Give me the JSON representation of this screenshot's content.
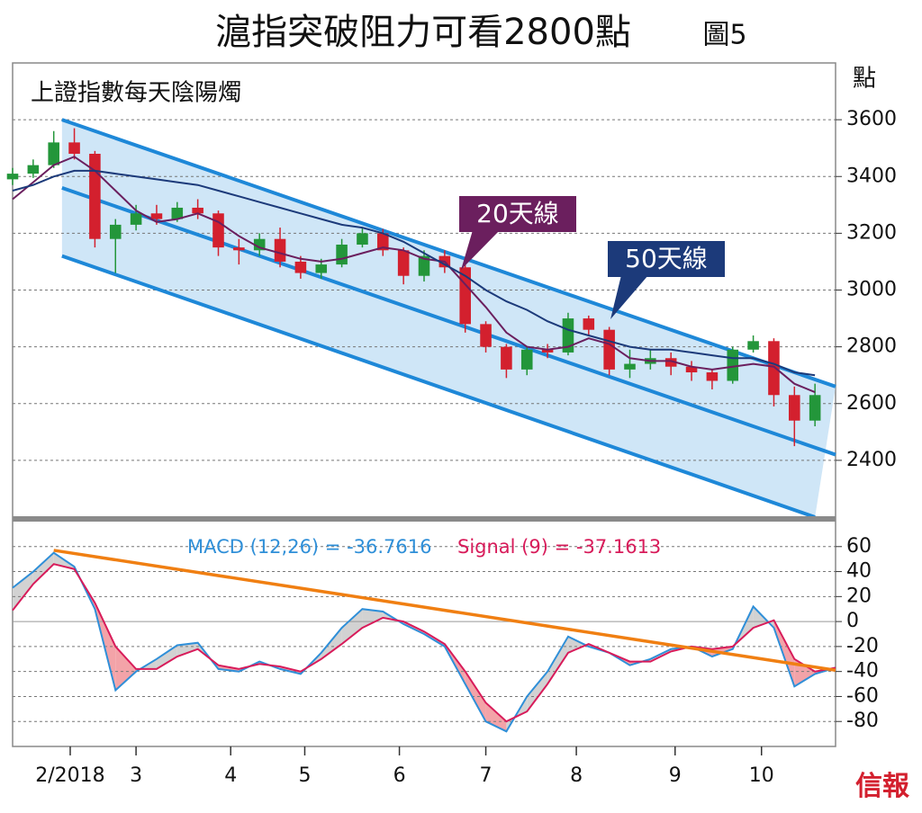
{
  "chart_data": [
    {
      "type": "candlestick",
      "title": "滬指突破阻力可看2800點",
      "figure_label": "圖5",
      "subtitle": "上證指數每天陰陽燭",
      "y_unit_label": "點",
      "x": [
        0,
        5,
        10,
        15,
        20,
        25,
        30,
        35,
        40,
        45,
        50,
        55,
        60,
        65,
        70,
        75,
        80,
        85,
        90,
        95,
        100,
        105,
        110,
        115,
        120,
        125,
        130,
        135,
        140,
        145,
        150,
        155,
        160,
        165,
        170,
        175,
        180,
        185,
        190,
        195
      ],
      "open": [
        3390,
        3410,
        3440,
        3520,
        3480,
        3180,
        3230,
        3270,
        3250,
        3290,
        3270,
        3150,
        3140,
        3180,
        3100,
        3060,
        3090,
        3160,
        3200,
        3140,
        3050,
        3120,
        3080,
        2880,
        2800,
        2720,
        2790,
        2780,
        2900,
        2860,
        2720,
        2740,
        2760,
        2730,
        2710,
        2680,
        2790,
        2820,
        2630,
        2540
      ],
      "high": [
        3430,
        3460,
        3560,
        3570,
        3490,
        3250,
        3300,
        3300,
        3310,
        3320,
        3280,
        3180,
        3200,
        3220,
        3120,
        3110,
        3180,
        3220,
        3215,
        3150,
        3140,
        3140,
        3090,
        2890,
        2810,
        2800,
        2810,
        2920,
        2910,
        2870,
        2790,
        2790,
        2780,
        2750,
        2720,
        2800,
        2840,
        2830,
        2660,
        2670
      ],
      "low": [
        3370,
        3395,
        3430,
        3460,
        3150,
        3060,
        3210,
        3230,
        3240,
        3250,
        3120,
        3090,
        3120,
        3080,
        3040,
        3040,
        3080,
        3150,
        3120,
        3020,
        3030,
        3060,
        2850,
        2780,
        2690,
        2700,
        2760,
        2770,
        2840,
        2700,
        2690,
        2720,
        2700,
        2680,
        2650,
        2670,
        2780,
        2590,
        2450,
        2520
      ],
      "close": [
        3410,
        3440,
        3520,
        3480,
        3180,
        3230,
        3270,
        3250,
        3290,
        3270,
        3150,
        3140,
        3180,
        3100,
        3060,
        3090,
        3160,
        3200,
        3140,
        3050,
        3120,
        3080,
        2880,
        2800,
        2720,
        2790,
        2780,
        2900,
        2860,
        2720,
        2740,
        2760,
        2730,
        2710,
        2680,
        2790,
        2820,
        2630,
        2540,
        2630
      ],
      "up_color": "#23963a",
      "down_color": "#d3202e",
      "series": [
        {
          "name": "20天線",
          "color": "#6b1f5e",
          "values": [
            3320,
            3380,
            3440,
            3470,
            3420,
            3350,
            3280,
            3240,
            3250,
            3270,
            3240,
            3190,
            3150,
            3130,
            3110,
            3100,
            3110,
            3130,
            3150,
            3140,
            3110,
            3100,
            3020,
            2940,
            2850,
            2800,
            2790,
            2800,
            2830,
            2810,
            2760,
            2750,
            2750,
            2730,
            2720,
            2730,
            2740,
            2730,
            2670,
            2640
          ]
        },
        {
          "name": "50天線",
          "color": "#1c3a7a",
          "values": [
            3350,
            3370,
            3400,
            3420,
            3420,
            3410,
            3400,
            3390,
            3380,
            3370,
            3350,
            3330,
            3310,
            3290,
            3270,
            3250,
            3230,
            3220,
            3200,
            3170,
            3130,
            3090,
            3050,
            3000,
            2960,
            2930,
            2890,
            2860,
            2840,
            2820,
            2800,
            2790,
            2790,
            2780,
            2770,
            2760,
            2760,
            2740,
            2710,
            2700
          ]
        }
      ],
      "channel": {
        "color": "#1e88d8",
        "fill": "#cfe6f7",
        "upper": {
          "x": [
            12,
            200
          ],
          "y": [
            3600,
            2660
          ]
        },
        "middle": {
          "x": [
            12,
            200
          ],
          "y": [
            3360,
            2420
          ]
        },
        "lower": {
          "x": [
            12,
            195
          ],
          "y": [
            3120,
            2200
          ]
        }
      },
      "xlim": [
        0,
        200
      ],
      "ylim": [
        2200,
        3800
      ],
      "yticks": [
        2400,
        2600,
        2800,
        3000,
        3200,
        3400,
        3600
      ],
      "grid": true
    },
    {
      "type": "line",
      "x": [
        0,
        5,
        10,
        15,
        20,
        25,
        30,
        35,
        40,
        45,
        50,
        55,
        60,
        65,
        70,
        75,
        80,
        85,
        90,
        95,
        100,
        105,
        110,
        115,
        120,
        125,
        130,
        135,
        140,
        145,
        150,
        155,
        160,
        165,
        170,
        175,
        180,
        185,
        190,
        195,
        200
      ],
      "series": [
        {
          "name": "MACD (12,26) = -36.7616",
          "color": "#2f8fd8",
          "values": [
            27,
            40,
            55,
            44,
            10,
            -55,
            -40,
            -30,
            -19,
            -17,
            -38,
            -40,
            -32,
            -38,
            -42,
            -25,
            -5,
            10,
            8,
            -2,
            -10,
            -20,
            -50,
            -80,
            -88,
            -60,
            -40,
            -12,
            -20,
            -25,
            -35,
            -30,
            -22,
            -20,
            -28,
            -22,
            12,
            -5,
            -52,
            -42,
            -37
          ]
        },
        {
          "name": "Signal (9) = -37.1613",
          "color": "#d81b5a",
          "values": [
            9,
            30,
            46,
            42,
            15,
            -20,
            -38,
            -38,
            -28,
            -22,
            -35,
            -38,
            -34,
            -36,
            -40,
            -30,
            -18,
            -5,
            3,
            0,
            -8,
            -18,
            -40,
            -65,
            -80,
            -72,
            -50,
            -25,
            -18,
            -25,
            -32,
            -32,
            -24,
            -20,
            -22,
            -20,
            -5,
            1,
            -30,
            -40,
            -37
          ]
        }
      ],
      "trend_line": {
        "color": "#f07f12",
        "x": [
          10,
          200
        ],
        "y": [
          57,
          -39
        ]
      },
      "xlim": [
        0,
        200
      ],
      "ylim": [
        -100,
        80
      ],
      "yticks": [
        -80,
        -60,
        -40,
        -20,
        0,
        20,
        40,
        60
      ],
      "grid": true,
      "xticks": [
        {
          "value": 14,
          "label": "2/2018"
        },
        {
          "value": 30,
          "label": "3"
        },
        {
          "value": 53,
          "label": "4"
        },
        {
          "value": 71,
          "label": "5"
        },
        {
          "value": 94,
          "label": "6"
        },
        {
          "value": 115,
          "label": "7"
        },
        {
          "value": 137,
          "label": "8"
        },
        {
          "value": 161,
          "label": "9"
        },
        {
          "value": 182,
          "label": "10"
        }
      ]
    }
  ],
  "source": "信報"
}
